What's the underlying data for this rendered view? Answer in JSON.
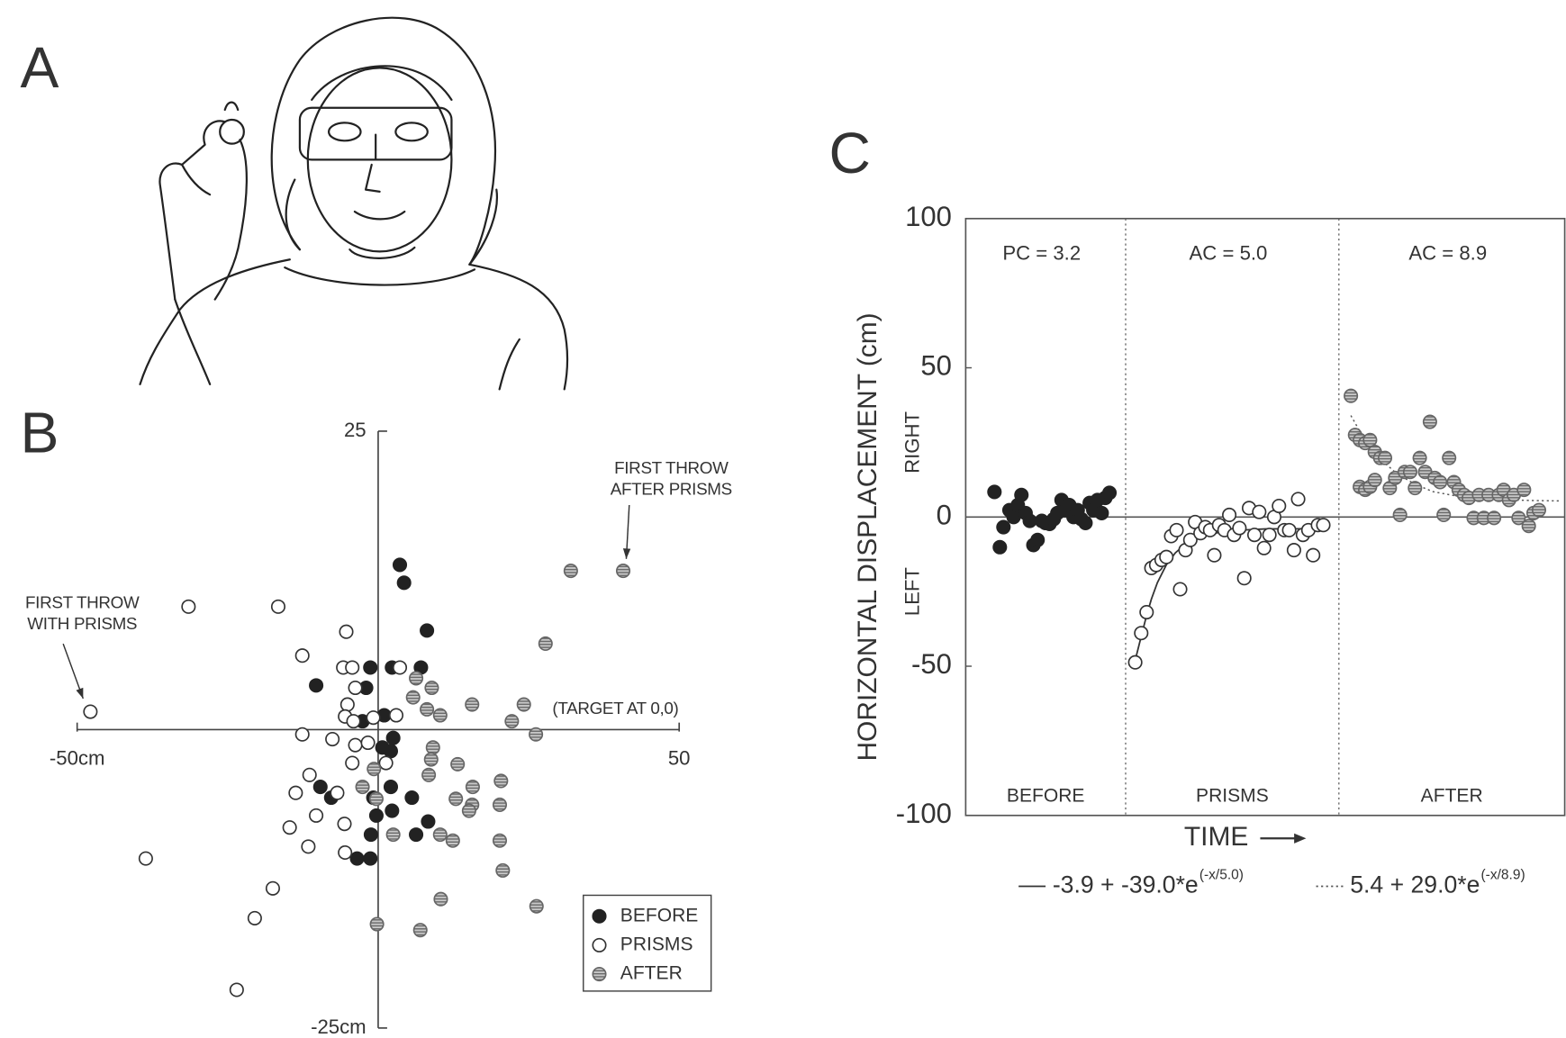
{
  "figure": {
    "panel_labels": [
      "A",
      "B",
      "C"
    ]
  },
  "chart_data": [
    {
      "type": "scatter",
      "xlim": [
        -50,
        50
      ],
      "ylim": [
        -25,
        25
      ],
      "xticks": [
        {
          "value": -50,
          "label": "-50cm"
        },
        50
      ],
      "yticks": [
        {
          "value": -25,
          "label": "-25cm"
        },
        25
      ],
      "annotations": [
        {
          "lines": [
            "FIRST THROW",
            "WITH PRISMS"
          ]
        },
        {
          "lines": [
            "FIRST THROW",
            "AFTER PRISMS"
          ]
        },
        {
          "lines": [
            "(TARGET AT 0,0)"
          ]
        }
      ],
      "legend": "lower right",
      "series": [
        {
          "name": "BEFORE",
          "color": "#222222",
          "marker": "filled",
          "x": [
            3.6,
            4.3,
            8.1,
            -10.3,
            -1.3,
            2.3,
            7.1,
            -2,
            1,
            -2.6,
            2.5,
            0.7,
            2.1,
            -9.6,
            -7.8,
            -0.8,
            2.1,
            5.6,
            -0.3,
            2.3,
            8.3,
            -1.2,
            6.3,
            -3.5,
            -1.3
          ],
          "values": [
            13.8,
            12.3,
            8.3,
            3.7,
            5.2,
            5.2,
            5.2,
            3.5,
            1.2,
            0.7,
            -0.7,
            -1.5,
            -1.8,
            -4.8,
            -5.7,
            -5.7,
            -4.8,
            -5.7,
            -7.2,
            -6.8,
            -7.7,
            -8.8,
            -8.8,
            -10.8,
            -10.8
          ]
        },
        {
          "name": "PRISMS",
          "color": "#ffffff",
          "marker": "open",
          "x": [
            -47.8,
            -31.5,
            -16.6,
            -5.3,
            -12.6,
            -5.8,
            -4.3,
            3.6,
            -3.8,
            -5.1,
            -5.5,
            -4.1,
            -0.8,
            3,
            -12.6,
            -7.6,
            -3.8,
            -1.7,
            -4.3,
            1.3,
            -11.4,
            -6.8,
            -13.7,
            -10.3,
            -14.7,
            -11.6,
            -5.6,
            -5.5,
            -38.6,
            -17.5,
            -20.5,
            -23.5
          ],
          "values": [
            1.5,
            10.3,
            10.3,
            8.2,
            6.2,
            5.2,
            5.2,
            5.2,
            3.5,
            2.1,
            1.1,
            0.7,
            1,
            1.2,
            -0.4,
            -0.8,
            -1.3,
            -1.1,
            -2.8,
            -2.8,
            -3.8,
            -5.3,
            -5.3,
            -7.2,
            -8.2,
            -9.8,
            -7.9,
            -10.3,
            -10.8,
            -13.3,
            -15.8,
            -21.8
          ]
        },
        {
          "name": "AFTER",
          "color": "#a0a0a0",
          "marker": "hatched",
          "x": [
            40.7,
            32,
            27.8,
            8.9,
            6.3,
            5.8,
            8.1,
            10.3,
            15.6,
            24.2,
            22.2,
            26.2,
            9.1,
            8.8,
            13.2,
            8.4,
            -0.7,
            -2.6,
            -0.3,
            15.7,
            12.9,
            15.6,
            20.4,
            20.2,
            15.1,
            2.5,
            10.3,
            12.4,
            20.2,
            20.7,
            10.4,
            26.3,
            7,
            -0.2
          ],
          "values": [
            13.3,
            13.3,
            7.2,
            3.5,
            4.3,
            2.7,
            1.7,
            1.2,
            2.1,
            2.1,
            0.7,
            -0.4,
            -1.5,
            -2.5,
            -2.9,
            -3.8,
            -3.3,
            -4.8,
            -5.8,
            -4.8,
            -5.8,
            -6.3,
            -4.3,
            -6.3,
            -6.8,
            -8.8,
            -8.8,
            -9.3,
            -9.3,
            -11.8,
            -14.2,
            -14.8,
            -16.8,
            -16.3
          ]
        }
      ]
    },
    {
      "type": "scatter",
      "ylabel": "HORIZONTAL DISPLACEMENT (cm)",
      "direction_labels": [
        "RIGHT",
        "LEFT"
      ],
      "xlabel": "TIME",
      "xlim": [
        0,
        100
      ],
      "ylim": [
        -100,
        100
      ],
      "yticks": [
        -100,
        -50,
        0,
        50,
        100
      ],
      "dividers": [
        26.7,
        62.3
      ],
      "sections": [
        {
          "label": "BEFORE",
          "note": "PC = 3.2"
        },
        {
          "label": "PRISMS",
          "note": "AC = 5.0"
        },
        {
          "label": "AFTER",
          "note": "AC = 8.9"
        }
      ],
      "series": [
        {
          "name": "BEFORE",
          "color": "#222222",
          "marker": "filled",
          "x": [
            4.8,
            5.7,
            6.3,
            7.3,
            8,
            8.7,
            9.3,
            10,
            10.7,
            11.3,
            12,
            12.7,
            13.3,
            14,
            14.7,
            15.3,
            16,
            16.7,
            17.3,
            18,
            18.7,
            19.3,
            20,
            20.7,
            21.3,
            22,
            22.7,
            23.3,
            24
          ],
          "values": [
            8.4,
            -10.1,
            -3.4,
            2.3,
            0,
            4,
            7.4,
            1.3,
            -1.3,
            -9.4,
            -7.7,
            -1.3,
            -2,
            -2.3,
            -0.7,
            1.3,
            5.7,
            2.3,
            4,
            0,
            2.3,
            -0.7,
            -2,
            4.7,
            2.3,
            5.7,
            1.3,
            6.4,
            8.1
          ]
        },
        {
          "name": "PRISMS",
          "color": "#ffffff",
          "marker": "open",
          "x": [
            28.3,
            29.3,
            30.2,
            31,
            31.8,
            32.7,
            33.5,
            34.3,
            35.2,
            35.8,
            36.7,
            37.5,
            38.3,
            39.2,
            40,
            40.8,
            41.5,
            42.3,
            43.2,
            44,
            44.8,
            45.7,
            46.5,
            47.3,
            48.2,
            49,
            49.8,
            50.7,
            51.5,
            52.3,
            53.2,
            54,
            54.8,
            55.5,
            56.3,
            57.2,
            58,
            58.8,
            59.7
          ],
          "values": [
            -48.7,
            -38.9,
            -31.9,
            -17.1,
            -16.1,
            -14.4,
            -13.4,
            -6.4,
            -4.4,
            -24.2,
            -11.1,
            -7.7,
            -1.7,
            -5.4,
            -3.4,
            -4.4,
            -12.8,
            -2.7,
            -4.4,
            0.7,
            -6,
            -3.7,
            -20.5,
            3,
            -6,
            1.7,
            -10.4,
            -6,
            0,
            3.7,
            -4.4,
            -4.4,
            -11.1,
            6,
            -6,
            -4.4,
            -12.8,
            -2.7,
            -2.7
          ]
        },
        {
          "name": "AFTER",
          "color": "#a0a0a0",
          "marker": "hatched",
          "x": [
            64.3,
            65,
            65.8,
            66.7,
            67.5,
            68.3,
            69.2,
            70,
            65.8,
            66.7,
            67.5,
            68.3,
            72.5,
            70.8,
            71.7,
            73.3,
            74.2,
            75,
            75.8,
            76.7,
            77.5,
            78.3,
            79.2,
            79.8,
            80.7,
            81.5,
            82.3,
            83.2,
            84,
            84.8,
            85.7,
            86.5,
            87.3,
            88.2,
            89,
            89.8,
            90.7,
            91.5,
            92.3,
            93.2,
            94,
            94.8,
            95.7
          ],
          "values": [
            40.6,
            27.5,
            25.8,
            24.8,
            25.8,
            21.8,
            19.8,
            19.8,
            10.1,
            9.1,
            10.1,
            12.4,
            0.7,
            9.7,
            13.1,
            15.1,
            15.1,
            9.7,
            19.8,
            15.1,
            31.9,
            13.1,
            11.7,
            0.7,
            19.8,
            11.7,
            9.1,
            7.4,
            6.4,
            -0.3,
            7.4,
            -0.3,
            7.4,
            -0.3,
            7.4,
            9.1,
            5.7,
            7.4,
            -0.3,
            9.1,
            -3,
            1.3,
            2.3
          ]
        }
      ],
      "fits": [
        {
          "name": "-3.9 + -39.0*e",
          "exponent": "(-x/5.0)",
          "style": "solid",
          "color": "#333333",
          "x": [
            28.3,
            29.3,
            30.2,
            31,
            32,
            33.5,
            35,
            37,
            40,
            44,
            50,
            60
          ],
          "values": [
            -48,
            -40,
            -33,
            -27.5,
            -22,
            -16,
            -12,
            -8.5,
            -6,
            -4.6,
            -4,
            -3.9
          ]
        },
        {
          "name": "5.4 + 29.0*e",
          "exponent": "(-x/8.9)",
          "style": "dotted",
          "color": "#555555",
          "x": [
            64.3,
            66,
            68,
            70,
            72,
            75,
            78,
            82,
            87,
            95,
            99
          ],
          "values": [
            34,
            28,
            22,
            18,
            14.5,
            11,
            8.5,
            7,
            6,
            5.5,
            5.4
          ]
        }
      ]
    }
  ]
}
